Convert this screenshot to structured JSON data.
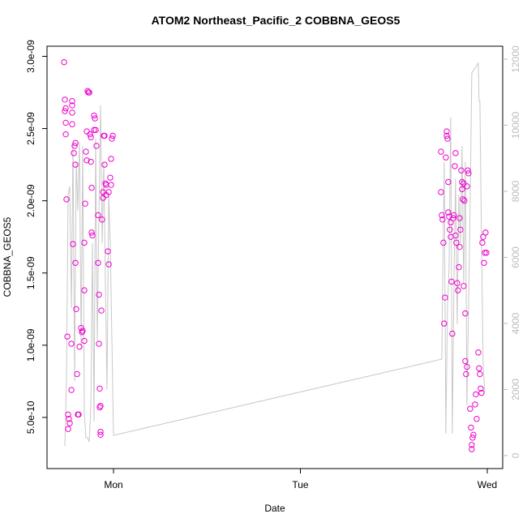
{
  "chart_data": {
    "type": "scatter",
    "title": "ATOM2 Northeast_Pacific_2 COBBNA_GEOS5",
    "x_label": "Date",
    "y_label": "COBBNA_GEOS5",
    "xlim": [
      -8.54,
      49.98
    ],
    "xticks": [
      {
        "value": 0,
        "label": "Mon"
      },
      {
        "value": 24,
        "label": "Tue"
      },
      {
        "value": 48,
        "label": "Wed"
      }
    ],
    "ylim": [
      1.46e-10,
      3.07e-09
    ],
    "yticks": [
      {
        "value": 5e-10,
        "label": "5.0e-10"
      },
      {
        "value": 1e-09,
        "label": "1.0e-09"
      },
      {
        "value": 1.5e-09,
        "label": "1.5e-09"
      },
      {
        "value": 2e-09,
        "label": "2.0e-09"
      },
      {
        "value": 2.5e-09,
        "label": "2.5e-09"
      },
      {
        "value": 3e-09,
        "label": "3.0e-09"
      }
    ],
    "y2lim": [
      -393,
      12393
    ],
    "y2ticks": [
      0,
      2000,
      4000,
      6000,
      8000,
      10000,
      12000
    ],
    "y2_color": "#bbbbbb",
    "series": [
      {
        "type": "scatter",
        "color": "#ee00cc",
        "x": [
          -6.35,
          -6.25,
          -6.14,
          -6.25,
          -6.14,
          -6.14,
          -6.04,
          -5.93,
          -5.83,
          -5.73,
          -5.62,
          -5.83,
          -5.31,
          -5.31,
          -5.31,
          -5.31,
          -5.41,
          -5.41,
          -5.21,
          -5.1,
          -5.0,
          -4.89,
          -4.89,
          -4.89,
          -4.79,
          -4.68,
          -4.58,
          -4.48,
          -4.37,
          -4.16,
          -4.06,
          -3.96,
          -3.75,
          -3.75,
          -3.75,
          -3.64,
          -3.54,
          -3.44,
          -3.44,
          -3.33,
          -3.23,
          -3.12,
          -3.02,
          -2.91,
          -2.91,
          -2.81,
          -2.81,
          -2.71,
          -2.5,
          -2.5,
          -2.39,
          -2.29,
          -2.19,
          -1.98,
          -1.98,
          -1.87,
          -1.87,
          -1.77,
          -1.77,
          -1.67,
          -1.67,
          -1.67,
          -1.56,
          -1.46,
          -1.35,
          -1.35,
          -1.25,
          -1.15,
          -1.15,
          -1.04,
          -0.94,
          -0.94,
          -0.73,
          -0.62,
          -0.62,
          -0.42,
          -0.31,
          -0.31,
          -0.21,
          -0.1,
          42.06,
          42.06,
          42.16,
          42.26,
          42.37,
          42.47,
          42.58,
          42.68,
          42.79,
          42.79,
          42.89,
          42.99,
          42.99,
          43.1,
          43.2,
          43.31,
          43.31,
          43.41,
          43.51,
          43.62,
          43.72,
          43.83,
          43.93,
          43.93,
          44.03,
          44.14,
          44.24,
          44.35,
          44.45,
          44.45,
          44.55,
          44.66,
          44.76,
          44.76,
          44.87,
          44.97,
          44.97,
          45.07,
          45.18,
          45.18,
          45.28,
          45.39,
          45.39,
          45.49,
          45.6,
          45.8,
          45.91,
          46.01,
          46.01,
          46.12,
          46.22,
          46.43,
          46.53,
          46.64,
          46.85,
          46.95,
          47.05,
          47.16,
          47.26,
          47.37,
          47.47,
          47.58,
          47.68,
          47.78,
          47.89
        ],
        "values": [
          2.96e-09,
          2.7e-09,
          2.64e-09,
          2.62e-09,
          2.54e-09,
          2.46e-09,
          2.01e-09,
          1.06e-09,
          5.2e-10,
          4.9e-10,
          4.6e-10,
          4.2e-10,
          2.69e-09,
          2.66e-09,
          2.61e-09,
          2.53e-09,
          1.01e-09,
          6.9e-10,
          1.7e-09,
          2.33e-09,
          2.38e-09,
          2.4e-09,
          2.25e-09,
          1.57e-09,
          1.25e-09,
          8e-10,
          5.2e-10,
          5.2e-10,
          9.9e-10,
          1.12e-09,
          1.09e-09,
          1.1e-09,
          1.03e-09,
          1.38e-09,
          1.71e-09,
          1.98e-09,
          2.34e-09,
          2.48e-09,
          2.28e-09,
          2.76e-09,
          2.75e-09,
          2.75e-09,
          2.46e-09,
          2.44e-09,
          2.27e-09,
          2.09e-09,
          1.78e-09,
          1.76e-09,
          2.49e-09,
          2.59e-09,
          2.57e-09,
          2.49e-09,
          2.38e-09,
          1.9e-09,
          1.57e-09,
          1.35e-09,
          1.01e-09,
          7e-10,
          5.7e-10,
          5.8e-10,
          4e-10,
          3.8e-10,
          1.24e-09,
          1.87e-09,
          2.02e-09,
          2.06e-09,
          2.45e-09,
          2.45e-09,
          2.25e-09,
          2.12e-09,
          2.11e-09,
          2.04e-09,
          1.65e-09,
          1.56e-09,
          2.06e-09,
          2.16e-09,
          2.29e-09,
          2.11e-09,
          2.43e-09,
          2.45e-09,
          2.34e-09,
          2.06e-09,
          1.9e-09,
          1.87e-09,
          1.71e-09,
          1.15e-09,
          1.33e-09,
          2.3e-09,
          2.48e-09,
          2.45e-09,
          2.43e-09,
          2.13e-09,
          1.92e-09,
          1.89e-09,
          1.8e-09,
          1.85e-09,
          1.75e-09,
          1.44e-09,
          1.08e-09,
          1.88e-09,
          1.9e-09,
          2.24e-09,
          2.33e-09,
          1.76e-09,
          1.71e-09,
          1.43e-09,
          1.38e-09,
          1.54e-09,
          1.68e-09,
          1.88e-09,
          1.8e-09,
          2.21e-09,
          2.13e-09,
          2.08e-09,
          2.01e-09,
          2.12e-09,
          1.41e-09,
          2e-09,
          1.22e-09,
          8.9e-10,
          8e-10,
          8.5e-10,
          2.1e-09,
          2.21e-09,
          2.19e-09,
          5.6e-10,
          4.3e-10,
          3.1e-10,
          2.8e-10,
          3.6e-10,
          3.8e-10,
          5.9e-10,
          6.6e-10,
          4.9e-10,
          9.5e-10,
          8.4e-10,
          8e-10,
          7e-10,
          6.7e-10,
          1.71e-09,
          1.75e-09,
          1.57e-09,
          1.64e-09,
          1.78e-09,
          1.64e-09
        ]
      },
      {
        "type": "line",
        "axis": "y2",
        "color": "#c8c8c8",
        "x": [
          -6.25,
          -6.04,
          -5.83,
          -5.62,
          -5.41,
          -5.21,
          -5.0,
          -4.79,
          -4.58,
          -4.37,
          -4.16,
          -3.96,
          -3.75,
          -3.54,
          -3.33,
          -3.12,
          -2.91,
          -2.71,
          -2.5,
          -2.29,
          -2.08,
          -1.87,
          -1.67,
          -1.46,
          -1.25,
          -1.04,
          -0.83,
          -0.62,
          -0.42,
          -0.21,
          0,
          42.16,
          42.47,
          42.68,
          42.89,
          43.1,
          43.31,
          43.51,
          43.72,
          43.93,
          44.14,
          44.35,
          44.55,
          44.76,
          44.97,
          45.18,
          45.39,
          45.6,
          45.8,
          46.01,
          46.85,
          46.95,
          47.05,
          47.26,
          47.47,
          47.68
        ],
        "values": [
          294,
          2258,
          7902,
          8147,
          4466,
          9497,
          2258,
          8883,
          7411,
          9497,
          3239,
          9374,
          1276,
          540,
          540,
          417,
          1521,
          6429,
          1031,
          9620,
          3485,
          7411,
          10601,
          6429,
          8883,
          5202,
          2012,
          7902,
          6429,
          3485,
          613,
          2920,
          8883,
          663,
          4466,
          5693,
          10233,
          663,
          5202,
          8393,
          3975,
          7902,
          6429,
          9374,
          5202,
          8883,
          1521,
          4466,
          7656,
          11583,
          11877,
          10724,
          10724,
          6429,
          2748,
          1914
        ]
      }
    ]
  }
}
